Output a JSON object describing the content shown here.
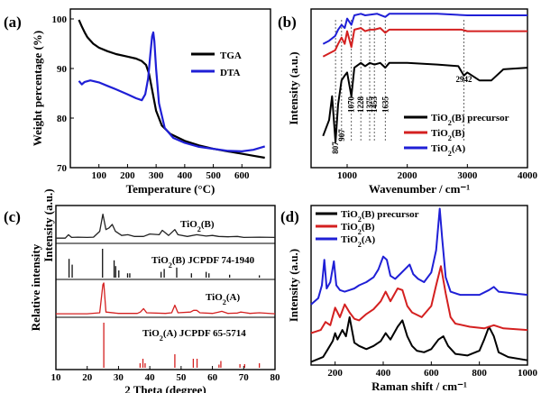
{
  "chart_data": [
    {
      "panel": "(a)",
      "type": "line",
      "xlabel": "Temperature (°C)",
      "ylabel": "Weight percentage (%)",
      "xticks": [
        "100",
        "200",
        "300",
        "400",
        "500",
        "600"
      ],
      "yticks": [
        "70",
        "80",
        "90",
        "100"
      ],
      "xlim": [
        0,
        700
      ],
      "ylim": [
        70,
        102
      ],
      "legend": "right",
      "series": [
        {
          "name": "TGA",
          "color": "#000000",
          "x": [
            30,
            40,
            50,
            60,
            80,
            100,
            130,
            160,
            200,
            230,
            250,
            265,
            275,
            285,
            300,
            320,
            350,
            400,
            450,
            500,
            550,
            600,
            640,
            680
          ],
          "y": [
            99.8,
            98.5,
            97.3,
            96.3,
            95.0,
            94.2,
            93.5,
            92.9,
            92.4,
            92.0,
            91.5,
            90.7,
            89.0,
            86.0,
            81.5,
            78.5,
            76.8,
            75.4,
            74.5,
            73.8,
            73.3,
            72.8,
            72.4,
            72.0
          ]
        },
        {
          "name": "DTA",
          "color": "#1f1fd6",
          "x": [
            30,
            40,
            50,
            70,
            100,
            130,
            160,
            200,
            230,
            250,
            262,
            272,
            280,
            286,
            290,
            294,
            300,
            310,
            330,
            360,
            400,
            450,
            500,
            550,
            600,
            640,
            680
          ],
          "y": [
            87.5,
            86.8,
            87.3,
            87.6,
            87.2,
            86.5,
            85.8,
            84.8,
            84.0,
            83.6,
            84.8,
            88.0,
            93.0,
            96.5,
            97.3,
            95.5,
            90.0,
            83.0,
            78.0,
            76.0,
            75.0,
            74.2,
            73.8,
            73.4,
            73.3,
            73.6,
            74.3
          ]
        }
      ]
    },
    {
      "panel": "(b)",
      "type": "line",
      "xlabel": "Wavenumber / cm⁻¹",
      "ylabel": "Intensity (a.u.)",
      "xticks": [
        "1000",
        "2000",
        "3000",
        "4000"
      ],
      "xlim": [
        400,
        4000
      ],
      "ylim": [
        0,
        1
      ],
      "annotations": [
        "807",
        "907",
        "1070",
        "1228",
        "1375",
        "1453",
        "1635",
        "2942"
      ],
      "annotation_positions": [
        807,
        907,
        1070,
        1228,
        1375,
        1453,
        1635,
        2942
      ],
      "legend": "bottom-right",
      "series": [
        {
          "name": "TiO2(B) precursor",
          "color": "#000000",
          "x": [
            600,
            700,
            750,
            807,
            850,
            907,
            960,
            1000,
            1070,
            1120,
            1228,
            1300,
            1375,
            1453,
            1550,
            1635,
            1700,
            2000,
            2500,
            2850,
            2942,
            3000,
            3200,
            3400,
            3600,
            4000
          ],
          "y": [
            0.2,
            0.3,
            0.45,
            0.16,
            0.4,
            0.55,
            0.58,
            0.6,
            0.45,
            0.63,
            0.66,
            0.64,
            0.66,
            0.65,
            0.66,
            0.63,
            0.66,
            0.66,
            0.65,
            0.64,
            0.58,
            0.6,
            0.55,
            0.55,
            0.62,
            0.63
          ]
        },
        {
          "name": "TiO2(B)",
          "color": "#d42020",
          "x": [
            600,
            700,
            800,
            850,
            907,
            960,
            1000,
            1070,
            1120,
            1228,
            1300,
            1375,
            1453,
            1550,
            1635,
            1700,
            2000,
            2500,
            2900,
            3000,
            3500,
            4000
          ],
          "y": [
            0.7,
            0.72,
            0.74,
            0.78,
            0.82,
            0.78,
            0.86,
            0.76,
            0.87,
            0.88,
            0.86,
            0.87,
            0.87,
            0.88,
            0.85,
            0.87,
            0.87,
            0.87,
            0.87,
            0.86,
            0.86,
            0.86
          ]
        },
        {
          "name": "TiO2(A)",
          "color": "#1f1fd6",
          "x": [
            600,
            700,
            800,
            850,
            907,
            960,
            1000,
            1070,
            1120,
            1228,
            1300,
            1500,
            1635,
            1700,
            2000,
            2500,
            3000,
            3500,
            4000
          ],
          "y": [
            0.78,
            0.8,
            0.83,
            0.87,
            0.9,
            0.88,
            0.94,
            0.9,
            0.96,
            0.97,
            0.96,
            0.97,
            0.95,
            0.97,
            0.97,
            0.97,
            0.96,
            0.96,
            0.96
          ]
        }
      ]
    },
    {
      "panel": "(c)",
      "type": "line",
      "xlabel": "2 Theta (degree)",
      "ylabel": "Relative intensity",
      "ylabel2": "Intensity (a.u.)",
      "xticks": [
        "10",
        "20",
        "30",
        "40",
        "50",
        "60",
        "70",
        "80"
      ],
      "xlim": [
        10,
        80
      ],
      "labels": [
        "TiO2(B)",
        "TiO2(B) JCPDF 74-1940",
        "TiO2(A)",
        "TiO2(A) JCPDF 65-5714"
      ],
      "series": [
        {
          "name": "TiO2(B)",
          "color": "#222222",
          "x": [
            10,
            13,
            14,
            15,
            17,
            20,
            22,
            24,
            25,
            26,
            27,
            28,
            29,
            31,
            33,
            35,
            38,
            40,
            43,
            44,
            46,
            48,
            49,
            52,
            55,
            58,
            60,
            62,
            65,
            68,
            70,
            75,
            80
          ],
          "y": [
            0.1,
            0.1,
            0.2,
            0.12,
            0.13,
            0.12,
            0.13,
            0.3,
            0.8,
            0.35,
            0.4,
            0.5,
            0.3,
            0.18,
            0.2,
            0.15,
            0.15,
            0.22,
            0.2,
            0.33,
            0.18,
            0.35,
            0.2,
            0.15,
            0.2,
            0.16,
            0.18,
            0.15,
            0.14,
            0.15,
            0.12,
            0.13,
            0.12
          ]
        },
        {
          "name": "TiO2(A)",
          "color": "#d42020",
          "x": [
            10,
            20,
            24,
            25,
            25.3,
            26,
            30,
            36,
            37,
            38,
            39,
            45,
            47,
            48,
            49,
            53,
            54,
            55,
            56,
            60,
            62,
            63,
            65,
            68,
            69,
            70,
            72,
            75,
            80
          ],
          "y": [
            0.05,
            0.05,
            0.08,
            0.9,
            0.95,
            0.1,
            0.06,
            0.06,
            0.1,
            0.2,
            0.08,
            0.06,
            0.08,
            0.3,
            0.08,
            0.1,
            0.15,
            0.15,
            0.08,
            0.06,
            0.1,
            0.12,
            0.06,
            0.07,
            0.1,
            0.09,
            0.06,
            0.08,
            0.05
          ]
        }
      ],
      "sticks": [
        {
          "name": "TiO2(B) JCPDF 74-1940",
          "color": "#111111",
          "positions": [
            14.2,
            15.2,
            24.9,
            28.6,
            29.1,
            30.1,
            32.9,
            33.6,
            43.6,
            44.6,
            48.6,
            53.3,
            58.0,
            58.9,
            65.5,
            75.0
          ],
          "heights": [
            0.65,
            0.45,
            1.0,
            0.6,
            0.4,
            0.25,
            0.15,
            0.15,
            0.2,
            0.3,
            0.35,
            0.15,
            0.2,
            0.15,
            0.1,
            0.08
          ]
        },
        {
          "name": "TiO2(A) JCPDF 65-5714",
          "color": "#d42020",
          "positions": [
            25.3,
            36.9,
            37.8,
            38.5,
            48.0,
            53.9,
            55.1,
            62.1,
            62.7,
            68.8,
            70.3,
            75.0
          ],
          "heights": [
            1.0,
            0.1,
            0.2,
            0.1,
            0.3,
            0.2,
            0.2,
            0.07,
            0.15,
            0.08,
            0.08,
            0.1
          ]
        }
      ]
    },
    {
      "panel": "(d)",
      "type": "line",
      "xlabel": "Raman shift / cm⁻¹",
      "ylabel": "Intensity (a.u.)",
      "xticks": [
        "200",
        "400",
        "600",
        "800",
        "1000"
      ],
      "xlim": [
        100,
        1000
      ],
      "legend": "top-left",
      "series": [
        {
          "name": "TiO2(B) precursor",
          "color": "#000000",
          "x": [
            100,
            150,
            170,
            190,
            200,
            210,
            230,
            245,
            260,
            280,
            300,
            330,
            360,
            390,
            410,
            430,
            460,
            480,
            500,
            520,
            540,
            570,
            600,
            630,
            650,
            670,
            700,
            750,
            800,
            820,
            840,
            860,
            880,
            920,
            1000
          ],
          "y": [
            0.02,
            0.05,
            0.1,
            0.15,
            0.2,
            0.16,
            0.22,
            0.18,
            0.3,
            0.14,
            0.12,
            0.1,
            0.12,
            0.15,
            0.2,
            0.16,
            0.24,
            0.28,
            0.18,
            0.12,
            0.09,
            0.08,
            0.1,
            0.16,
            0.18,
            0.12,
            0.07,
            0.06,
            0.09,
            0.16,
            0.24,
            0.18,
            0.08,
            0.05,
            0.03
          ]
        },
        {
          "name": "TiO2(B)",
          "color": "#d42020",
          "x": [
            100,
            140,
            160,
            180,
            200,
            220,
            240,
            260,
            280,
            300,
            330,
            360,
            390,
            410,
            430,
            460,
            480,
            500,
            520,
            560,
            600,
            620,
            640,
            660,
            680,
            700,
            760,
            820,
            860,
            900,
            1000
          ],
          "y": [
            0.2,
            0.22,
            0.27,
            0.25,
            0.36,
            0.3,
            0.38,
            0.33,
            0.29,
            0.28,
            0.32,
            0.35,
            0.4,
            0.46,
            0.4,
            0.48,
            0.47,
            0.37,
            0.33,
            0.3,
            0.37,
            0.5,
            0.62,
            0.45,
            0.3,
            0.26,
            0.24,
            0.23,
            0.25,
            0.23,
            0.22
          ]
        },
        {
          "name": "TiO2(A)",
          "color": "#1f1fd6",
          "x": [
            100,
            130,
            145,
            155,
            165,
            180,
            195,
            205,
            220,
            240,
            260,
            280,
            300,
            330,
            360,
            380,
            400,
            415,
            430,
            450,
            470,
            490,
            510,
            525,
            545,
            570,
            600,
            620,
            635,
            645,
            660,
            680,
            720,
            800,
            840,
            860,
            880,
            1000
          ],
          "y": [
            0.38,
            0.42,
            0.5,
            0.66,
            0.48,
            0.52,
            0.65,
            0.5,
            0.47,
            0.46,
            0.47,
            0.48,
            0.5,
            0.52,
            0.55,
            0.6,
            0.68,
            0.66,
            0.56,
            0.54,
            0.57,
            0.6,
            0.63,
            0.57,
            0.54,
            0.52,
            0.58,
            0.72,
            0.98,
            0.8,
            0.55,
            0.46,
            0.44,
            0.44,
            0.47,
            0.49,
            0.46,
            0.44
          ]
        }
      ]
    }
  ]
}
